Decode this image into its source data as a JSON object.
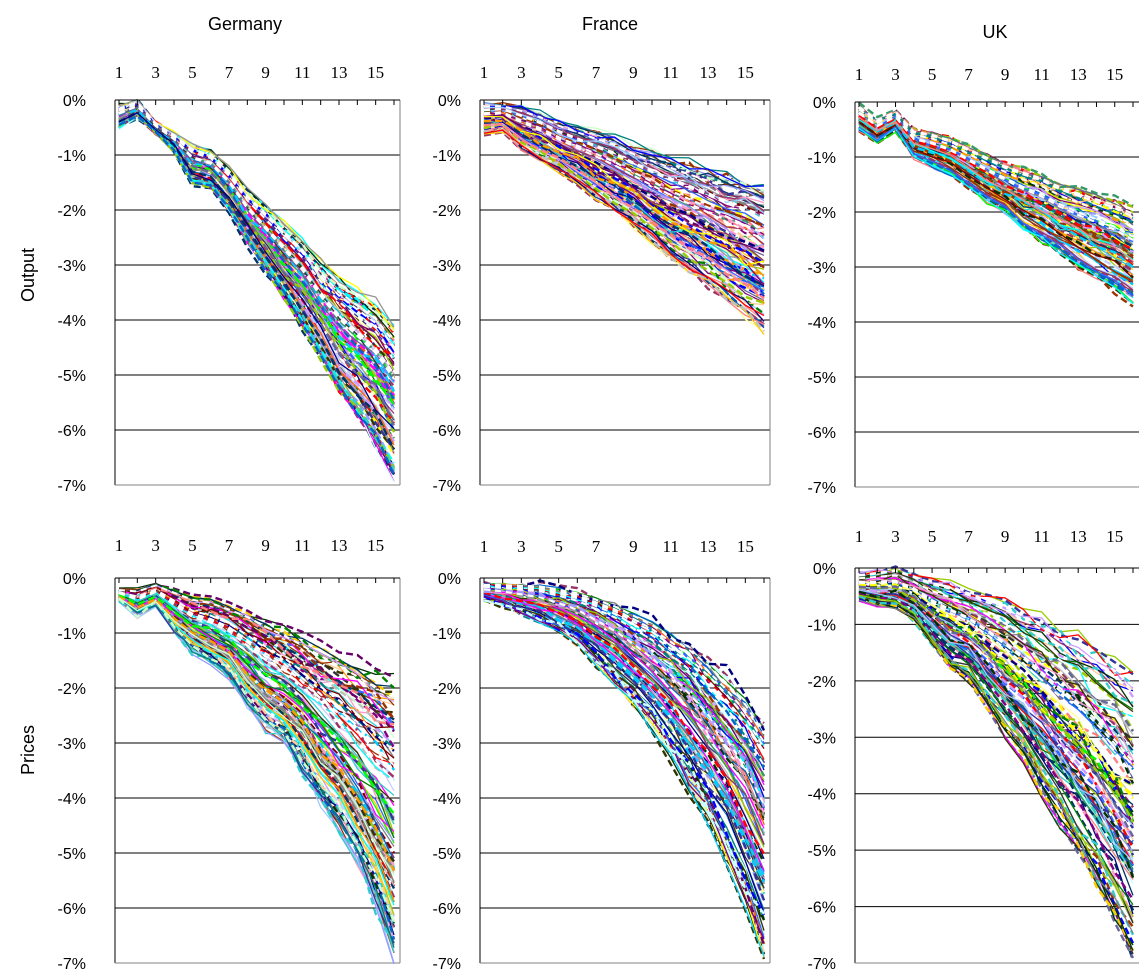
{
  "figure": {
    "col_titles": [
      "Germany",
      "France",
      "UK"
    ],
    "row_labels": [
      "Output",
      "Prices"
    ]
  },
  "chart_data": [
    {
      "type": "line",
      "country": "Germany",
      "measure": "Output",
      "x_ticks": [
        "1",
        "3",
        "5",
        "7",
        "9",
        "11",
        "13",
        "15"
      ],
      "y_ticks": [
        "0%",
        "-1%",
        "-2%",
        "-3%",
        "-4%",
        "-5%",
        "-6%",
        "-7%"
      ],
      "ylim": [
        -7,
        0
      ],
      "xlim": [
        1,
        16
      ],
      "x_axis_position": "top",
      "grid": "horizontal",
      "envelope": {
        "x": [
          1,
          2,
          3,
          4,
          5,
          6,
          7,
          8,
          9,
          10,
          11,
          12,
          13,
          14,
          15,
          16
        ],
        "upper": [
          -0.1,
          0.0,
          -0.4,
          -0.6,
          -0.8,
          -0.9,
          -1.2,
          -1.6,
          -1.9,
          -2.2,
          -2.5,
          -2.9,
          -3.2,
          -3.4,
          -3.6,
          -4.0
        ],
        "lower": [
          -0.5,
          -0.3,
          -0.6,
          -0.9,
          -1.5,
          -1.6,
          -2.0,
          -2.6,
          -3.1,
          -3.6,
          -4.1,
          -4.7,
          -5.3,
          -5.8,
          -6.3,
          -6.9
        ]
      }
    },
    {
      "type": "line",
      "country": "France",
      "measure": "Output",
      "x_ticks": [
        "1",
        "3",
        "5",
        "7",
        "9",
        "11",
        "13",
        "15"
      ],
      "y_ticks": [
        "0%",
        "-1%",
        "-2%",
        "-3%",
        "-4%",
        "-5%",
        "-6%",
        "-7%"
      ],
      "ylim": [
        -7,
        0
      ],
      "xlim": [
        1,
        16
      ],
      "x_axis_position": "top",
      "grid": "horizontal",
      "envelope": {
        "x": [
          1,
          2,
          3,
          4,
          5,
          6,
          7,
          8,
          9,
          10,
          11,
          12,
          13,
          14,
          15,
          16
        ],
        "upper": [
          -0.05,
          -0.05,
          -0.1,
          -0.2,
          -0.35,
          -0.45,
          -0.55,
          -0.65,
          -0.8,
          -0.9,
          -1.0,
          -1.1,
          -1.2,
          -1.3,
          -1.4,
          -1.5
        ],
        "lower": [
          -0.6,
          -0.55,
          -0.9,
          -1.1,
          -1.3,
          -1.55,
          -1.8,
          -2.05,
          -2.3,
          -2.6,
          -2.9,
          -3.15,
          -3.4,
          -3.7,
          -3.95,
          -4.2
        ]
      }
    },
    {
      "type": "line",
      "country": "UK",
      "measure": "Output",
      "x_ticks": [
        "1",
        "3",
        "5",
        "7",
        "9",
        "11",
        "13",
        "15"
      ],
      "y_ticks": [
        "0%",
        "-1%",
        "-2%",
        "-3%",
        "-4%",
        "-5%",
        "-6%",
        "-7%"
      ],
      "ylim": [
        -7,
        0
      ],
      "xlim": [
        1,
        16
      ],
      "x_axis_position": "top",
      "grid": "horizontal",
      "envelope": {
        "x": [
          1,
          2,
          3,
          4,
          5,
          6,
          7,
          8,
          9,
          10,
          11,
          12,
          13,
          14,
          15,
          16
        ],
        "upper": [
          -0.05,
          -0.3,
          -0.15,
          -0.5,
          -0.55,
          -0.65,
          -0.8,
          -0.95,
          -1.1,
          -1.2,
          -1.3,
          -1.45,
          -1.55,
          -1.65,
          -1.75,
          -1.9
        ],
        "lower": [
          -0.5,
          -0.7,
          -0.5,
          -1.0,
          -1.15,
          -1.3,
          -1.55,
          -1.8,
          -2.0,
          -2.3,
          -2.5,
          -2.75,
          -3.0,
          -3.2,
          -3.4,
          -3.65
        ]
      }
    },
    {
      "type": "line",
      "country": "Germany",
      "measure": "Prices",
      "x_ticks": [
        "1",
        "3",
        "5",
        "7",
        "9",
        "11",
        "13",
        "15"
      ],
      "y_ticks": [
        "0%",
        "-1%",
        "-2%",
        "-3%",
        "-4%",
        "-5%",
        "-6%",
        "-7%"
      ],
      "ylim": [
        -7,
        0
      ],
      "xlim": [
        1,
        16
      ],
      "x_axis_position": "top",
      "grid": "horizontal",
      "envelope": {
        "x": [
          1,
          2,
          3,
          4,
          5,
          6,
          7,
          8,
          9,
          10,
          11,
          12,
          13,
          14,
          15,
          16
        ],
        "upper": [
          -0.2,
          -0.2,
          -0.1,
          -0.2,
          -0.3,
          -0.35,
          -0.45,
          -0.55,
          -0.7,
          -0.85,
          -1.0,
          -1.15,
          -1.3,
          -1.45,
          -1.6,
          -1.7
        ],
        "lower": [
          -0.4,
          -0.7,
          -0.5,
          -0.95,
          -1.35,
          -1.55,
          -1.8,
          -2.3,
          -2.75,
          -3.0,
          -3.5,
          -4.1,
          -4.6,
          -5.2,
          -6.0,
          -6.9
        ]
      }
    },
    {
      "type": "line",
      "country": "France",
      "measure": "Prices",
      "x_ticks": [
        "1",
        "3",
        "5",
        "7",
        "9",
        "11",
        "13",
        "15"
      ],
      "y_ticks": [
        "0%",
        "-1%",
        "-2%",
        "-3%",
        "-4%",
        "-5%",
        "-6%",
        "-7%"
      ],
      "ylim": [
        -7,
        0
      ],
      "xlim": [
        1,
        16
      ],
      "x_axis_position": "top",
      "grid": "horizontal",
      "envelope": {
        "x": [
          1,
          2,
          3,
          4,
          5,
          6,
          7,
          8,
          9,
          10,
          11,
          12,
          13,
          14,
          15,
          16
        ],
        "upper": [
          -0.1,
          -0.1,
          -0.1,
          -0.1,
          -0.15,
          -0.2,
          -0.3,
          -0.4,
          -0.55,
          -0.7,
          -0.9,
          -1.1,
          -1.35,
          -1.65,
          -2.0,
          -2.5
        ],
        "lower": [
          -0.4,
          -0.5,
          -0.65,
          -0.8,
          -1.0,
          -1.25,
          -1.6,
          -1.95,
          -2.35,
          -2.8,
          -3.3,
          -3.9,
          -4.5,
          -5.2,
          -6.0,
          -7.0
        ]
      }
    },
    {
      "type": "line",
      "country": "UK",
      "measure": "Prices",
      "x_ticks": [
        "1",
        "3",
        "5",
        "7",
        "9",
        "11",
        "13",
        "15"
      ],
      "y_ticks": [
        "0%",
        "-1%",
        "-2%",
        "-3%",
        "-4%",
        "-5%",
        "-6%",
        "-7%"
      ],
      "ylim": [
        -7,
        0
      ],
      "xlim": [
        1,
        16
      ],
      "x_axis_position": "top",
      "grid": "horizontal",
      "envelope": {
        "x": [
          1,
          2,
          3,
          4,
          5,
          6,
          7,
          8,
          9,
          10,
          11,
          12,
          13,
          14,
          15,
          16
        ],
        "upper": [
          -0.1,
          -0.05,
          0.0,
          -0.1,
          -0.2,
          -0.25,
          -0.35,
          -0.45,
          -0.55,
          -0.7,
          -0.85,
          -1.0,
          -1.15,
          -1.35,
          -1.55,
          -1.8
        ],
        "lower": [
          -0.55,
          -0.65,
          -0.7,
          -0.9,
          -1.35,
          -1.75,
          -2.0,
          -2.45,
          -2.95,
          -3.4,
          -3.95,
          -4.5,
          -5.0,
          -5.55,
          -6.2,
          -6.9
        ]
      }
    }
  ]
}
